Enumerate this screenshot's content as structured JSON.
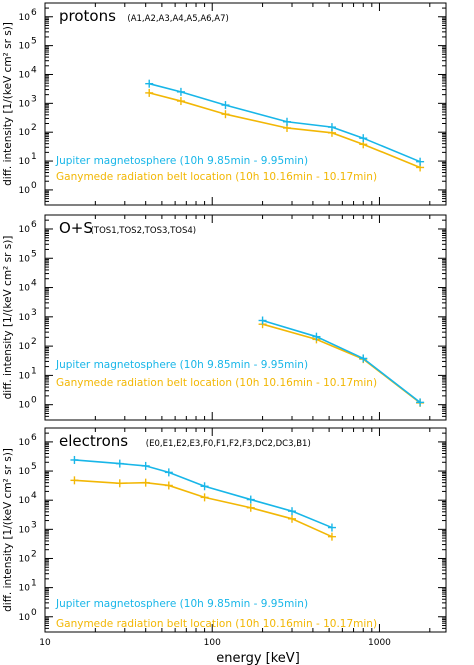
{
  "colors": {
    "jupiter": "#18b6e8",
    "ganymede": "#f2b705",
    "axis": "#000000"
  },
  "axes": {
    "xlabel": "energy [keV]",
    "x_scale": "log",
    "y_scale": "log",
    "xlim": [
      10,
      2500
    ],
    "ylim": [
      0.3,
      3000000
    ],
    "x_ticks": [
      {
        "value": 10,
        "label": "10"
      },
      {
        "value": 100,
        "label": "100"
      },
      {
        "value": 1000,
        "label": "1000"
      }
    ],
    "y_ticks": [
      {
        "value": 1,
        "label": "10",
        "exp": "0"
      },
      {
        "value": 10,
        "label": "10",
        "exp": "1"
      },
      {
        "value": 100,
        "label": "10",
        "exp": "2"
      },
      {
        "value": 1000,
        "label": "10",
        "exp": "3"
      },
      {
        "value": 10000,
        "label": "10",
        "exp": "4"
      },
      {
        "value": 100000,
        "label": "10",
        "exp": "5"
      },
      {
        "value": 1000000,
        "label": "10",
        "exp": "6"
      }
    ]
  },
  "chart_data": [
    {
      "type": "line",
      "title": "protons",
      "subtitle": "(A1,A2,A3,A4,A5,A6,A7)",
      "ylabel": "diff. intensity [1/(keV cm² sr s)]",
      "xlabel": "",
      "legend_position": "bottom-left",
      "series": [
        {
          "name": "Jupiter magnetosphere (10h 9.85min - 9.95min)",
          "color": "#18b6e8",
          "points": [
            [
              42,
              4800
            ],
            [
              65,
              2500
            ],
            [
              120,
              870
            ],
            [
              280,
              230
            ],
            [
              520,
              150
            ],
            [
              800,
              62
            ],
            [
              1750,
              9.5
            ]
          ]
        },
        {
          "name": "Ganymede radiation belt location (10h 10.16min - 10.17min)",
          "color": "#f2b705",
          "points": [
            [
              42,
              2300
            ],
            [
              65,
              1200
            ],
            [
              120,
              420
            ],
            [
              280,
              140
            ],
            [
              520,
              95
            ],
            [
              800,
              38
            ],
            [
              1750,
              6
            ]
          ]
        }
      ]
    },
    {
      "type": "line",
      "title": "O+S",
      "subtitle": "(TOS1,TOS2,TOS3,TOS4)",
      "ylabel": "diff. intensity [1/(keV cm² sr s)]",
      "xlabel": "",
      "legend_position": "bottom-left",
      "series": [
        {
          "name": "Jupiter magnetosphere (10h 9.85min - 9.95min)",
          "color": "#18b6e8",
          "points": [
            [
              200,
              750
            ],
            [
              420,
              210
            ],
            [
              800,
              38
            ],
            [
              1750,
              1.2
            ]
          ]
        },
        {
          "name": "Ganymede radiation belt location (10h 10.16min - 10.17min)",
          "color": "#f2b705",
          "points": [
            [
              200,
              560
            ],
            [
              420,
              170
            ],
            [
              800,
              36
            ],
            [
              1750,
              1.15
            ]
          ]
        }
      ]
    },
    {
      "type": "line",
      "title": "electrons",
      "subtitle": "(E0,E1,E2,E3,F0,F1,F2,F3,DC2,DC3,B1)",
      "ylabel": "diff. intensity [1/(keV cm² sr s)]",
      "xlabel": "energy [keV]",
      "legend_position": "bottom-left",
      "series": [
        {
          "name": "Jupiter magnetosphere (10h 9.85min - 9.95min)",
          "color": "#18b6e8",
          "points": [
            [
              15,
              240000
            ],
            [
              28,
              180000
            ],
            [
              40,
              150000
            ],
            [
              55,
              90000
            ],
            [
              90,
              30000
            ],
            [
              170,
              10500
            ],
            [
              300,
              4200
            ],
            [
              520,
              1150
            ]
          ]
        },
        {
          "name": "Ganymede radiation belt location (10h 10.16min - 10.17min)",
          "color": "#f2b705",
          "points": [
            [
              15,
              48000
            ],
            [
              28,
              38000
            ],
            [
              40,
              40000
            ],
            [
              55,
              32000
            ],
            [
              90,
              12500
            ],
            [
              170,
              5500
            ],
            [
              300,
              2300
            ],
            [
              520,
              560
            ]
          ]
        }
      ]
    }
  ]
}
